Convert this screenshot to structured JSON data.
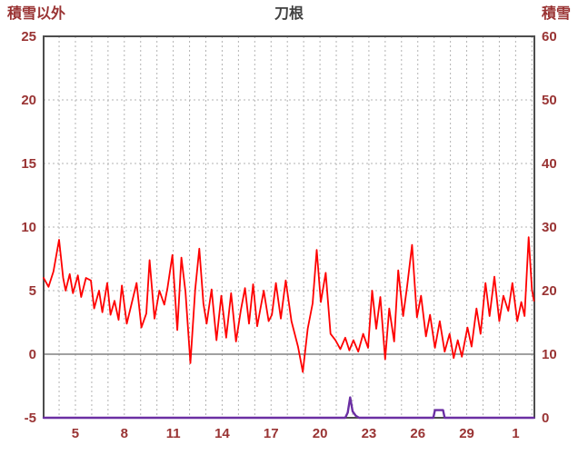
{
  "chart_data": {
    "type": "line",
    "title": "刀根",
    "left_axis": {
      "label": "積雪以外",
      "min": -5,
      "max": 25,
      "ticks": [
        25,
        20,
        15,
        10,
        5,
        0,
        -5
      ]
    },
    "right_axis": {
      "label": "積雪",
      "min": 0,
      "max": 60,
      "ticks": [
        60,
        50,
        40,
        30,
        20,
        10,
        0
      ]
    },
    "x_axis": {
      "range": [
        0,
        30.1
      ],
      "tick_positions": [
        1.95,
        4.95,
        7.95,
        10.95,
        13.95,
        16.95,
        19.95,
        22.95,
        25.95,
        28.95
      ],
      "tick_labels": [
        "5",
        "8",
        "11",
        "14",
        "17",
        "20",
        "23",
        "26",
        "29",
        "1"
      ],
      "day_grid_start": 0.95,
      "day_grid_step": 1,
      "day_grid_count": 30
    },
    "grid": {
      "horizontal_dashed_at_left_values": [
        20,
        15,
        10,
        5
      ],
      "zero_line_at": 0
    },
    "colors": {
      "labels": "#993333",
      "title": "#404040",
      "frame": "#4d4d4d",
      "grid": "#b3b3b3",
      "zero_line": "#808080",
      "background": "#ffffff",
      "red_series": "#ff0000",
      "purple_series": "#6b2fa3"
    },
    "series": [
      {
        "name": "積雪以外",
        "axis": "left",
        "color": "#ff0000",
        "width": 1.8,
        "points": [
          [
            0,
            6.0
          ],
          [
            0.3,
            5.3
          ],
          [
            0.6,
            6.5
          ],
          [
            0.95,
            9.0
          ],
          [
            1.2,
            6.0
          ],
          [
            1.35,
            5.0
          ],
          [
            1.6,
            6.3
          ],
          [
            1.8,
            4.8
          ],
          [
            2.1,
            6.2
          ],
          [
            2.3,
            4.5
          ],
          [
            2.6,
            6.0
          ],
          [
            2.9,
            5.8
          ],
          [
            3.1,
            3.6
          ],
          [
            3.4,
            5.0
          ],
          [
            3.6,
            3.3
          ],
          [
            3.9,
            5.6
          ],
          [
            4.1,
            3.1
          ],
          [
            4.35,
            4.2
          ],
          [
            4.6,
            2.7
          ],
          [
            4.8,
            5.4
          ],
          [
            5.1,
            2.4
          ],
          [
            5.4,
            4.0
          ],
          [
            5.7,
            5.6
          ],
          [
            6.0,
            2.1
          ],
          [
            6.3,
            3.2
          ],
          [
            6.5,
            7.4
          ],
          [
            6.8,
            2.8
          ],
          [
            7.1,
            5.0
          ],
          [
            7.4,
            3.9
          ],
          [
            7.6,
            5.2
          ],
          [
            7.9,
            7.8
          ],
          [
            8.2,
            1.9
          ],
          [
            8.45,
            7.6
          ],
          [
            8.7,
            4.9
          ],
          [
            9.0,
            -0.7
          ],
          [
            9.3,
            5.1
          ],
          [
            9.55,
            8.3
          ],
          [
            9.8,
            4.0
          ],
          [
            10.0,
            2.4
          ],
          [
            10.3,
            5.1
          ],
          [
            10.6,
            1.1
          ],
          [
            10.9,
            4.6
          ],
          [
            11.2,
            1.3
          ],
          [
            11.5,
            4.8
          ],
          [
            11.8,
            1.0
          ],
          [
            12.1,
            3.5
          ],
          [
            12.35,
            5.2
          ],
          [
            12.6,
            2.4
          ],
          [
            12.85,
            5.5
          ],
          [
            13.1,
            2.2
          ],
          [
            13.5,
            5.0
          ],
          [
            13.8,
            2.6
          ],
          [
            14.0,
            3.1
          ],
          [
            14.25,
            5.6
          ],
          [
            14.55,
            2.8
          ],
          [
            14.85,
            5.8
          ],
          [
            15.2,
            2.6
          ],
          [
            15.6,
            0.6
          ],
          [
            15.9,
            -1.4
          ],
          [
            16.2,
            2.0
          ],
          [
            16.5,
            4.0
          ],
          [
            16.75,
            8.2
          ],
          [
            17.0,
            4.1
          ],
          [
            17.3,
            6.4
          ],
          [
            17.6,
            1.6
          ],
          [
            17.9,
            1.1
          ],
          [
            18.2,
            0.4
          ],
          [
            18.5,
            1.3
          ],
          [
            18.75,
            0.3
          ],
          [
            19.0,
            1.1
          ],
          [
            19.3,
            0.2
          ],
          [
            19.6,
            1.6
          ],
          [
            19.9,
            0.5
          ],
          [
            20.15,
            5.0
          ],
          [
            20.4,
            2.0
          ],
          [
            20.65,
            4.5
          ],
          [
            20.95,
            -0.4
          ],
          [
            21.2,
            3.6
          ],
          [
            21.5,
            1.0
          ],
          [
            21.75,
            6.6
          ],
          [
            22.05,
            3.0
          ],
          [
            22.3,
            5.4
          ],
          [
            22.6,
            8.6
          ],
          [
            22.9,
            2.9
          ],
          [
            23.15,
            4.6
          ],
          [
            23.45,
            1.4
          ],
          [
            23.7,
            3.1
          ],
          [
            24.0,
            0.5
          ],
          [
            24.3,
            2.6
          ],
          [
            24.6,
            0.2
          ],
          [
            24.9,
            1.6
          ],
          [
            25.15,
            -0.3
          ],
          [
            25.4,
            1.1
          ],
          [
            25.65,
            -0.2
          ],
          [
            26.0,
            2.1
          ],
          [
            26.25,
            0.6
          ],
          [
            26.55,
            3.6
          ],
          [
            26.8,
            1.6
          ],
          [
            27.1,
            5.6
          ],
          [
            27.35,
            3.0
          ],
          [
            27.65,
            6.1
          ],
          [
            27.95,
            2.6
          ],
          [
            28.2,
            4.6
          ],
          [
            28.5,
            3.4
          ],
          [
            28.75,
            5.6
          ],
          [
            29.05,
            2.6
          ],
          [
            29.3,
            4.1
          ],
          [
            29.5,
            3.0
          ],
          [
            29.75,
            9.2
          ],
          [
            29.95,
            5.1
          ],
          [
            30.07,
            4.2
          ]
        ]
      },
      {
        "name": "積雪",
        "axis": "right",
        "color": "#6b2fa3",
        "width": 2.4,
        "points": [
          [
            0,
            0
          ],
          [
            18.5,
            0
          ],
          [
            18.65,
            0.8
          ],
          [
            18.8,
            3.2
          ],
          [
            18.95,
            1.0
          ],
          [
            19.15,
            0.3
          ],
          [
            19.35,
            0
          ],
          [
            23.9,
            0
          ],
          [
            24.0,
            1.2
          ],
          [
            24.5,
            1.2
          ],
          [
            24.6,
            0
          ],
          [
            30.07,
            0
          ]
        ]
      }
    ]
  }
}
